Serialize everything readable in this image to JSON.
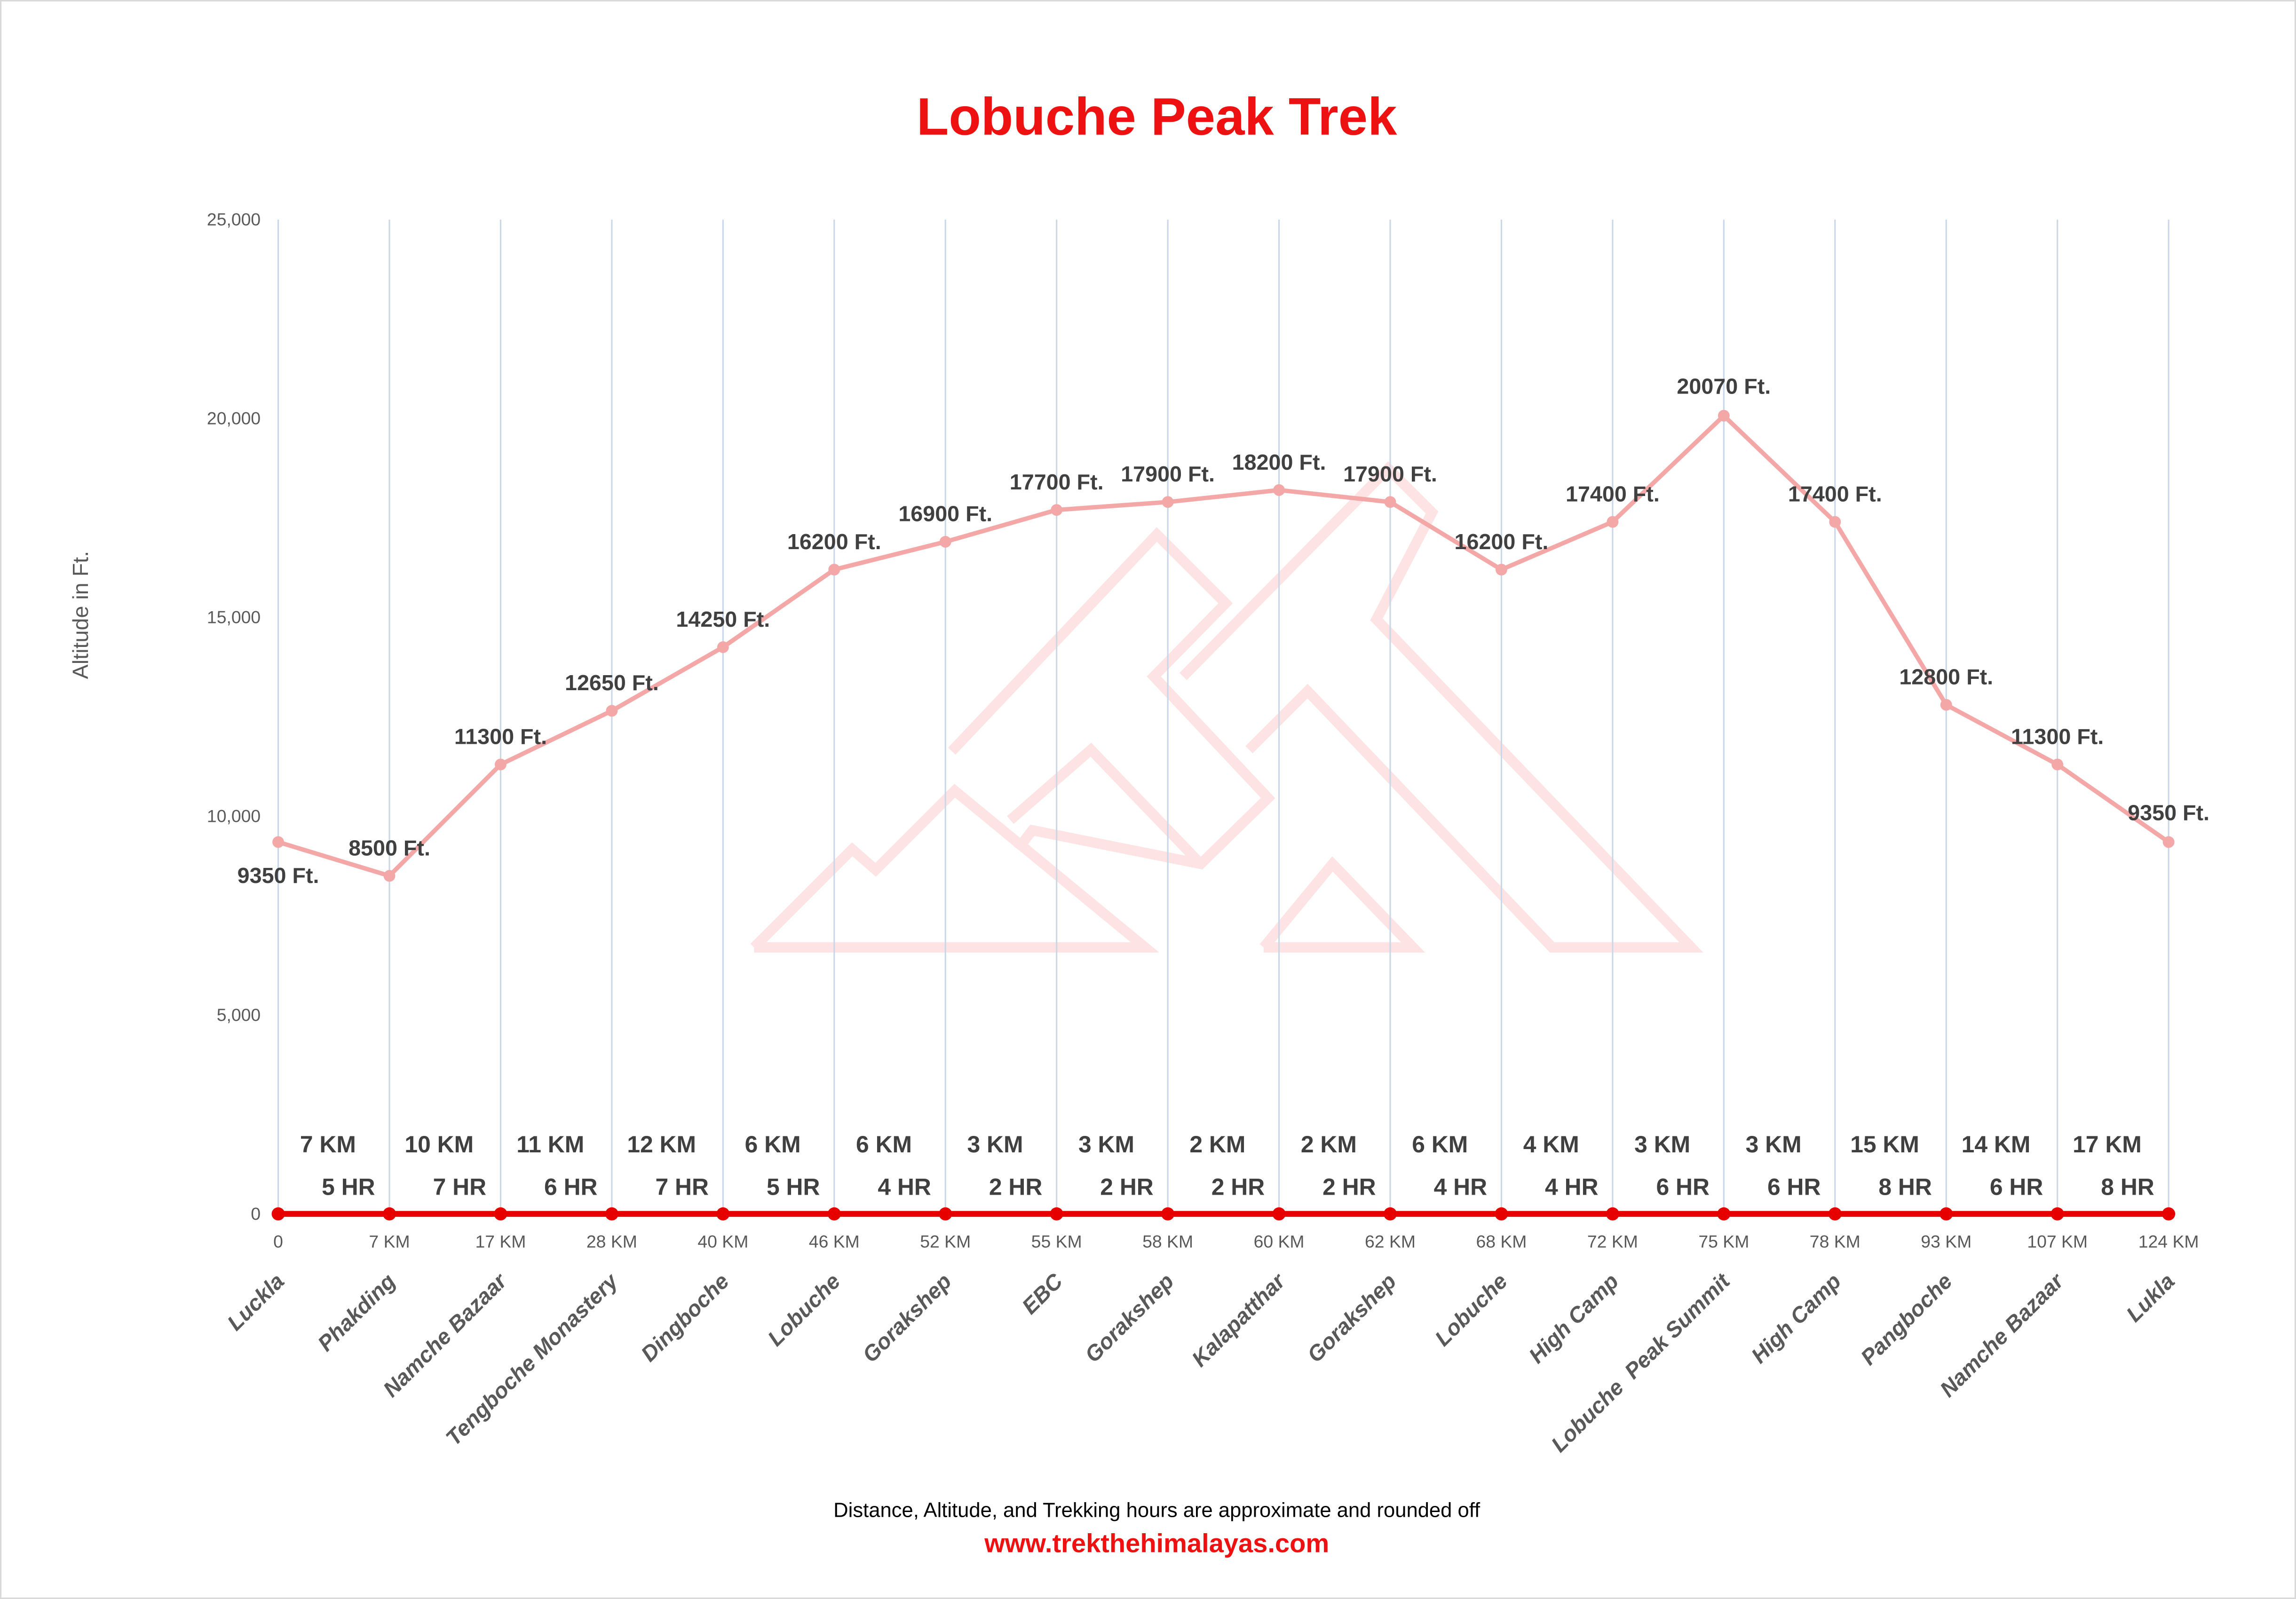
{
  "chart_data": {
    "type": "line",
    "title": "Lobuche Peak Trek",
    "ylabel": "Altitude in Ft.",
    "ylim": [
      0,
      25000
    ],
    "yticks": [
      "0",
      "5,000",
      "10,000",
      "15,000",
      "20,000",
      "25,000"
    ],
    "categories": [
      "Luckla",
      "Phakding",
      "Namche Bazaar",
      "Tengboche Monastery",
      "Dingboche",
      "Lobuche",
      "Gorakshep",
      "EBC",
      "Gorakshep",
      "Kalapatthar",
      "Gorakshep",
      "Lobuche",
      "High Camp",
      "Lobuche  Peak Summit",
      "High Camp",
      "Pangboche",
      "Namche Bazaar",
      "Lukla"
    ],
    "cumulative_distance": [
      "0",
      "7 KM",
      "17 KM",
      "28 KM",
      "40 KM",
      "46 KM",
      "52 KM",
      "55 KM",
      "58 KM",
      "60 KM",
      "62 KM",
      "68 KM",
      "72 KM",
      "75 KM",
      "78 KM",
      "93 KM",
      "107 KM",
      "124 KM"
    ],
    "series": [
      {
        "values": [
          9350,
          8500,
          11300,
          12650,
          14250,
          16200,
          16900,
          17700,
          17900,
          18200,
          17900,
          16200,
          17400,
          20070,
          17400,
          12800,
          11300,
          9350
        ],
        "labels": [
          "9350 Ft.",
          "8500 Ft.",
          "11300 Ft.",
          "12650 Ft.",
          "14250 Ft.",
          "16200 Ft.",
          "16900 Ft.",
          "17700 Ft.",
          "17900 Ft.",
          "18200 Ft.",
          "17900 Ft.",
          "16200 Ft.",
          "17400 Ft.",
          "20070 Ft.",
          "17400 Ft.",
          "12800 Ft.",
          "11300 Ft.",
          "9350 Ft."
        ],
        "color": "#f4a7a7"
      },
      {
        "values": [
          0,
          0,
          0,
          0,
          0,
          0,
          0,
          0,
          0,
          0,
          0,
          0,
          0,
          0,
          0,
          0,
          0,
          0
        ],
        "color": "#e60000"
      }
    ],
    "segment_distance": [
      "7 KM",
      "10 KM",
      "11 KM",
      "12 KM",
      "6 KM",
      "6 KM",
      "3 KM",
      "3 KM",
      "2 KM",
      "2 KM",
      "6 KM",
      "4 KM",
      "3 KM",
      "3 KM",
      "15 KM",
      "14 KM",
      "17 KM"
    ],
    "segment_hours": [
      "5 HR",
      "7 HR",
      "6 HR",
      "7 HR",
      "5 HR",
      "4 HR",
      "2 HR",
      "2 HR",
      "2 HR",
      "2 HR",
      "4 HR",
      "4 HR",
      "6 HR",
      "6 HR",
      "8 HR",
      "6 HR",
      "8 HR"
    ],
    "grid": "vertical",
    "legend": "none"
  },
  "footer": {
    "note": "Distance, Altitude, and Trekking hours are approximate and rounded off",
    "website": "www.trekthehimalayas.com"
  },
  "colors": {
    "title": "#ee1111",
    "watermark": "#fde3e3",
    "grid": "#c9d7e8"
  }
}
